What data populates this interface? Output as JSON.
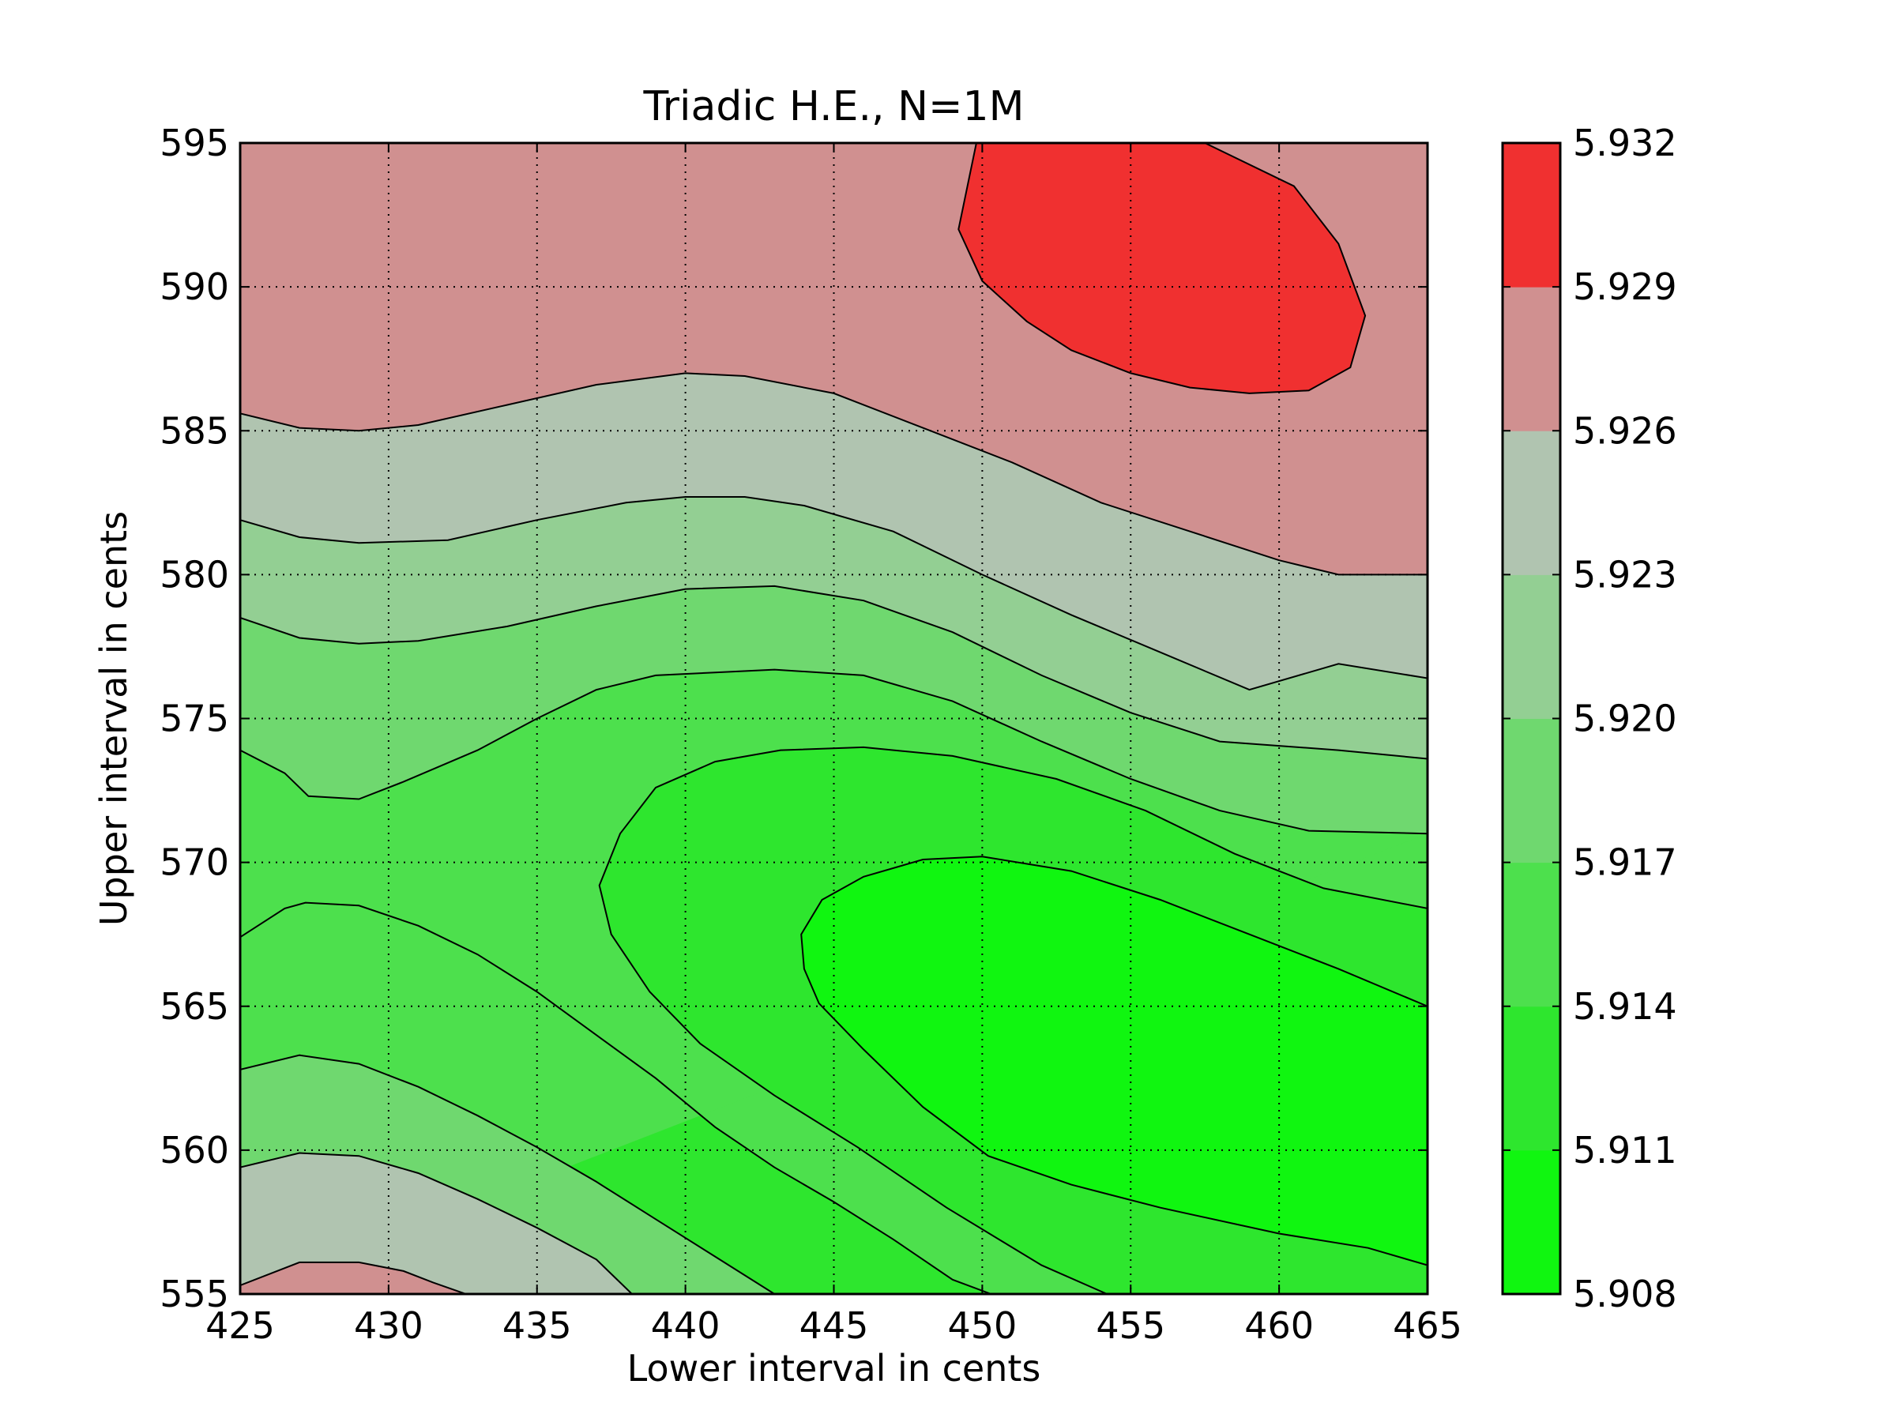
{
  "chart_data": {
    "type": "contour",
    "title": "Triadic H.E., N=1M",
    "xlabel": "Lower interval in cents",
    "ylabel": "Upper interval in cents",
    "xlim": [
      425,
      465
    ],
    "ylim": [
      555,
      595
    ],
    "xticks": [
      "425",
      "430",
      "435",
      "440",
      "445",
      "450",
      "455",
      "460",
      "465"
    ],
    "yticks": [
      "555",
      "560",
      "565",
      "570",
      "575",
      "580",
      "585",
      "590",
      "595"
    ],
    "grid": true,
    "colorbar": {
      "ticks": [
        "5.908",
        "5.911",
        "5.914",
        "5.917",
        "5.920",
        "5.923",
        "5.926",
        "5.929",
        "5.932"
      ],
      "levels": [
        5.908,
        5.911,
        5.914,
        5.917,
        5.92,
        5.923,
        5.926,
        5.929,
        5.932
      ],
      "colors": [
        "#10f610",
        "#2ee62e",
        "#4de04d",
        "#6fd86f",
        "#93cf93",
        "#b0c4b0",
        "#d09090",
        "#f03030"
      ]
    },
    "contours": [
      {
        "level": 5.929,
        "points": [
          [
            449.8,
            595
          ],
          [
            449.2,
            592
          ],
          [
            450,
            590.2
          ],
          [
            451.5,
            588.8
          ],
          [
            453,
            587.8
          ],
          [
            455,
            587
          ],
          [
            457,
            586.5
          ],
          [
            459,
            586.3
          ],
          [
            461,
            586.4
          ],
          [
            462.4,
            587.2
          ],
          [
            462.9,
            589
          ],
          [
            462,
            591.5
          ],
          [
            460.5,
            593.5
          ],
          [
            457.5,
            595
          ]
        ]
      },
      {
        "level": 5.926,
        "points": [
          [
            425,
            585.6
          ],
          [
            427,
            585.1
          ],
          [
            429,
            585.0
          ],
          [
            431,
            585.2
          ],
          [
            434,
            585.9
          ],
          [
            437,
            586.6
          ],
          [
            440,
            587.0
          ],
          [
            442,
            586.9
          ],
          [
            445,
            586.3
          ],
          [
            448,
            585.1
          ],
          [
            451,
            583.9
          ],
          [
            454,
            582.5
          ],
          [
            457,
            581.5
          ],
          [
            460,
            580.5
          ],
          [
            462,
            580.0
          ],
          [
            465,
            580.0
          ]
        ]
      },
      {
        "level": 5.923,
        "points": [
          [
            425,
            581.9
          ],
          [
            427,
            581.3
          ],
          [
            429,
            581.1
          ],
          [
            432,
            581.2
          ],
          [
            435,
            581.9
          ],
          [
            438,
            582.5
          ],
          [
            440,
            582.7
          ],
          [
            442,
            582.7
          ],
          [
            444,
            582.4
          ],
          [
            447,
            581.5
          ],
          [
            450,
            580.0
          ],
          [
            453,
            578.6
          ],
          [
            456,
            577.3
          ],
          [
            459,
            576.0
          ],
          [
            462,
            576.9
          ],
          [
            465,
            576.4
          ]
        ]
      },
      {
        "level": 5.92,
        "points": [
          [
            425,
            578.5
          ],
          [
            427,
            577.8
          ],
          [
            429,
            577.6
          ],
          [
            431,
            577.7
          ],
          [
            434,
            578.2
          ],
          [
            437,
            578.9
          ],
          [
            440,
            579.5
          ],
          [
            443,
            579.6
          ],
          [
            446,
            579.1
          ],
          [
            449,
            578.0
          ],
          [
            452,
            576.5
          ],
          [
            455,
            575.2
          ],
          [
            458,
            574.2
          ],
          [
            462,
            573.9
          ],
          [
            465,
            573.6
          ]
        ]
      },
      {
        "level": 5.917,
        "points": [
          [
            425,
            573.9
          ],
          [
            426.5,
            573.1
          ],
          [
            427.3,
            572.3
          ],
          [
            429,
            572.2
          ],
          [
            430.5,
            572.8
          ],
          [
            433,
            573.9
          ],
          [
            435,
            575.0
          ],
          [
            437,
            576.0
          ],
          [
            439,
            576.5
          ],
          [
            441,
            576.6
          ],
          [
            443,
            576.7
          ],
          [
            446,
            576.5
          ],
          [
            449,
            575.6
          ],
          [
            452,
            574.2
          ],
          [
            455,
            572.9
          ],
          [
            458,
            571.8
          ],
          [
            461,
            571.1
          ],
          [
            465,
            571.0
          ]
        ]
      },
      {
        "level": 5.914,
        "points": [
          [
            465,
            568.4
          ],
          [
            461.5,
            569.1
          ],
          [
            458.5,
            570.3
          ],
          [
            455.5,
            571.8
          ],
          [
            452.5,
            572.9
          ],
          [
            449,
            573.7
          ],
          [
            446,
            574.0
          ],
          [
            443.2,
            573.9
          ],
          [
            441,
            573.5
          ],
          [
            439,
            572.6
          ],
          [
            437.8,
            571.0
          ],
          [
            437.1,
            569.2
          ],
          [
            437.5,
            567.5
          ],
          [
            438.8,
            565.5
          ],
          [
            440.5,
            563.7
          ],
          [
            443,
            561.9
          ],
          [
            445.8,
            560.1
          ],
          [
            448.8,
            558.0
          ],
          [
            452,
            556.0
          ],
          [
            454.2,
            555
          ]
        ]
      },
      {
        "level": 5.911,
        "points": [
          [
            465,
            565.0
          ],
          [
            462,
            566.3
          ],
          [
            459,
            567.5
          ],
          [
            456,
            568.7
          ],
          [
            453,
            569.7
          ],
          [
            450,
            570.2
          ],
          [
            448,
            570.1
          ],
          [
            446,
            569.5
          ],
          [
            444.6,
            568.7
          ],
          [
            443.9,
            567.5
          ],
          [
            444,
            566.3
          ],
          [
            444.5,
            565.1
          ],
          [
            446,
            563.5
          ],
          [
            448,
            561.5
          ],
          [
            450.2,
            559.8
          ],
          [
            453,
            558.8
          ],
          [
            456,
            558.0
          ],
          [
            460,
            557.1
          ],
          [
            463,
            556.6
          ],
          [
            465,
            556.0
          ]
        ]
      },
      {
        "level": 5.914,
        "points": [
          [
            425,
            567.4
          ],
          [
            426.5,
            568.4
          ],
          [
            427.2,
            568.6
          ],
          [
            429,
            568.5
          ],
          [
            431,
            567.8
          ],
          [
            433,
            566.8
          ],
          [
            435,
            565.5
          ],
          [
            437,
            564.0
          ],
          [
            439,
            562.5
          ],
          [
            441,
            560.8
          ],
          [
            443,
            559.4
          ],
          [
            445,
            558.2
          ],
          [
            447,
            556.9
          ],
          [
            449,
            555.5
          ],
          [
            450.3,
            555
          ]
        ]
      },
      {
        "level": 5.917,
        "points": [
          [
            425,
            562.8
          ],
          [
            427,
            563.3
          ],
          [
            429,
            563.0
          ],
          [
            431,
            562.2
          ],
          [
            433,
            561.2
          ],
          [
            435,
            560.1
          ],
          [
            437,
            558.9
          ],
          [
            439,
            557.6
          ],
          [
            441,
            556.3
          ],
          [
            443,
            555
          ]
        ]
      },
      {
        "level": 5.92,
        "points": [
          [
            425,
            559.4
          ],
          [
            427,
            559.9
          ],
          [
            429,
            559.8
          ],
          [
            431,
            559.2
          ],
          [
            433,
            558.3
          ],
          [
            435,
            557.3
          ],
          [
            437,
            556.2
          ],
          [
            438.2,
            555
          ]
        ]
      },
      {
        "level": 5.923,
        "points": [
          [
            425,
            555.3
          ],
          [
            427,
            556.1
          ],
          [
            429,
            556.1
          ],
          [
            430.5,
            555.8
          ],
          [
            431.5,
            555.4
          ],
          [
            432.6,
            555
          ]
        ]
      }
    ]
  }
}
